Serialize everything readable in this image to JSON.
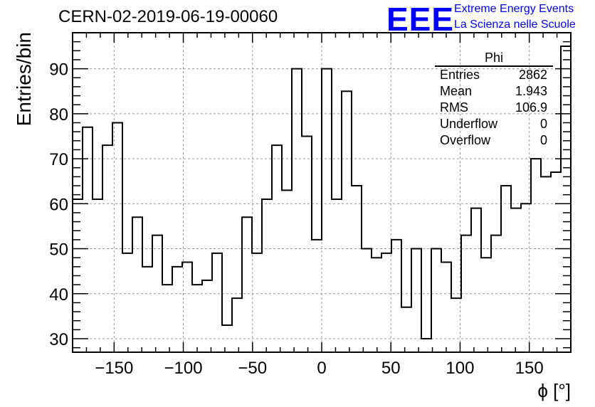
{
  "header": {
    "title": "CERN-02-2019-06-19-00060",
    "logo_text": "EEE",
    "logo_line1": "Extreme Energy Events",
    "logo_line2": "La Scienza nelle Scuole",
    "logo_color": "#0000ff"
  },
  "stats": {
    "name": "Phi",
    "rows": [
      {
        "label": "Entries",
        "value": "2862"
      },
      {
        "label": "Mean",
        "value": "1.943"
      },
      {
        "label": "RMS",
        "value": "106.9"
      },
      {
        "label": "Underflow",
        "value": "0"
      },
      {
        "label": "Overflow",
        "value": "0"
      }
    ]
  },
  "chart_data": {
    "type": "histogram",
    "title": "CERN-02-2019-06-19-00060",
    "xlabel": "ϕ [°]",
    "ylabel": "Entries/bin",
    "xlim": [
      -180,
      180
    ],
    "ylim": [
      27,
      98
    ],
    "bin_width": 7.2,
    "bin_start": -180,
    "values": [
      61,
      77,
      61,
      73,
      78,
      49,
      57,
      46,
      53,
      42,
      46,
      47,
      42,
      43,
      49,
      33,
      39,
      57,
      49,
      61,
      73,
      63,
      90,
      75,
      52,
      90,
      61,
      85,
      64,
      50,
      48,
      49,
      52,
      37,
      50,
      30,
      50,
      47,
      39,
      53,
      59,
      48,
      53,
      64,
      59,
      60,
      70,
      66,
      67,
      95
    ],
    "xticks": [
      -150,
      -100,
      -50,
      0,
      50,
      100,
      150
    ],
    "xtick_labels": [
      "−150",
      "−100",
      "−50",
      "0",
      "50",
      "100",
      "150"
    ],
    "yticks": [
      30,
      40,
      50,
      60,
      70,
      80,
      90
    ],
    "ytick_labels": [
      "30",
      "40",
      "50",
      "60",
      "70",
      "80",
      "90"
    ],
    "grid": true,
    "line_color": "#000000"
  }
}
